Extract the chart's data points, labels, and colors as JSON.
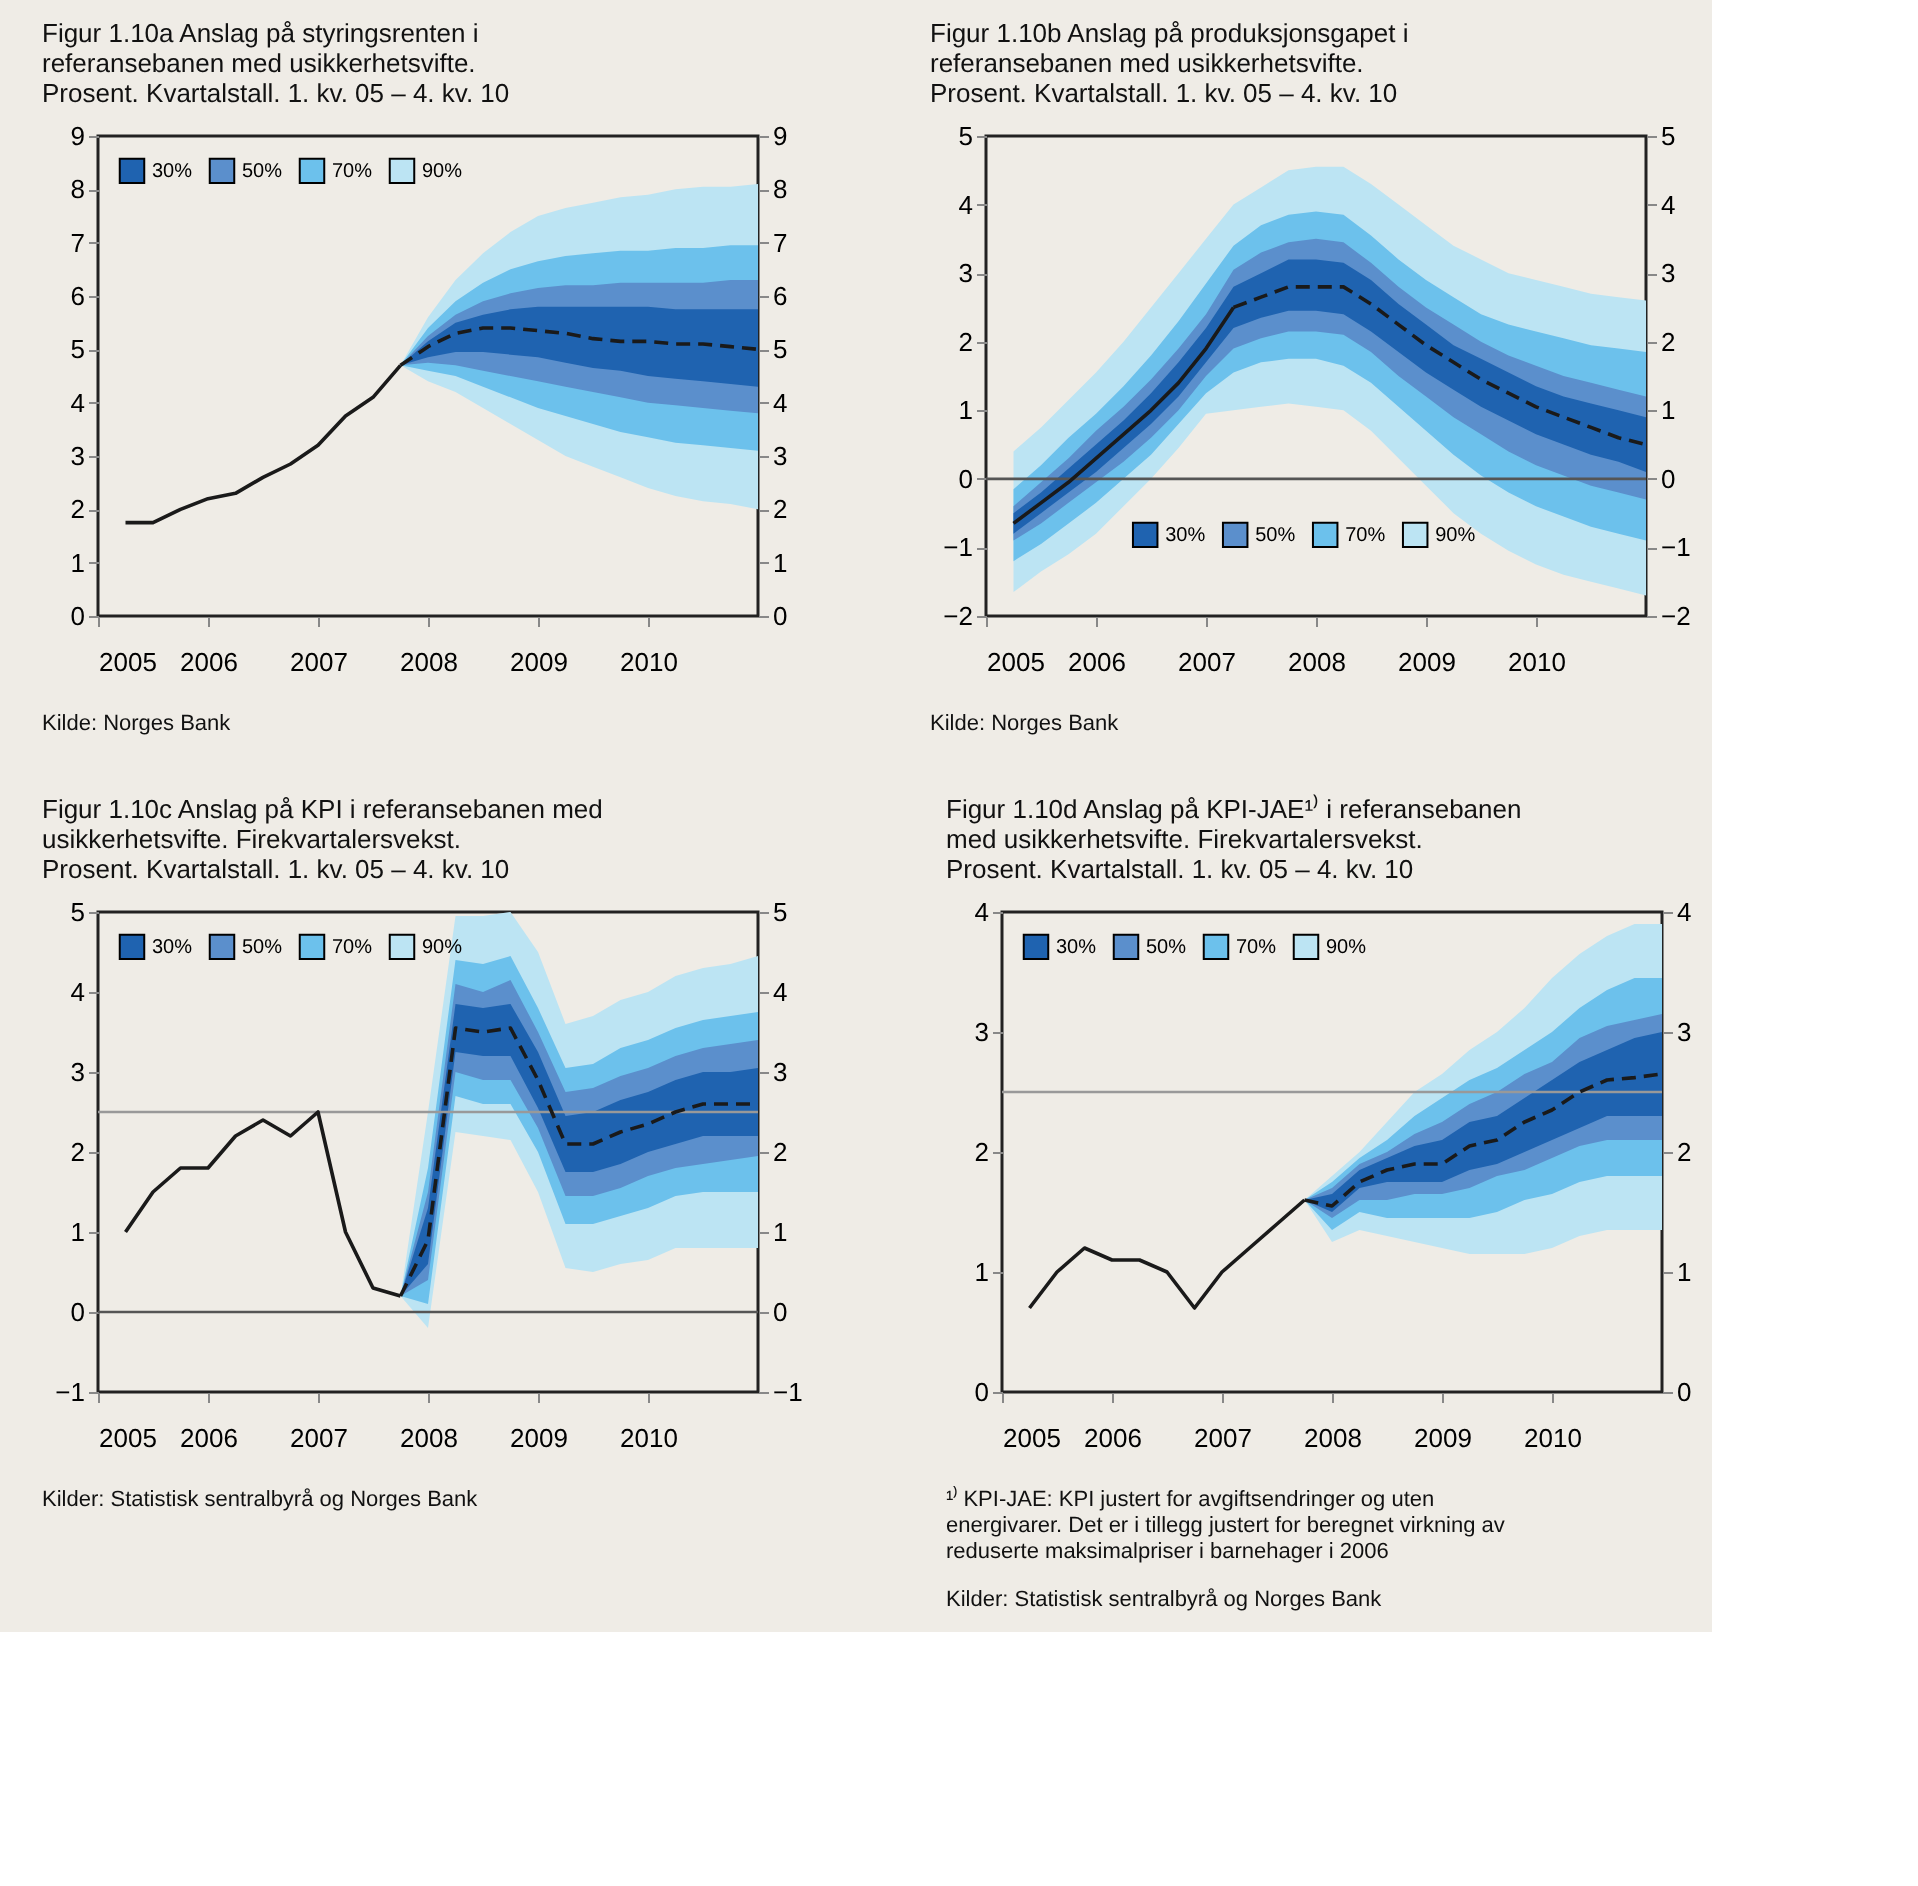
{
  "chart_data": [
    {
      "type": "line",
      "title": "Figur 1.10a Anslag på styringsrenten i referansebanen med usikkerhetsvifte.",
      "subtitle": "Prosent. Kvartalstall. 1. kv. 05 – 4. kv. 10",
      "xlim": [
        2005,
        2011
      ],
      "xticks": [
        2005,
        2006,
        2007,
        2008,
        2009,
        2010
      ],
      "ylim": [
        0,
        9
      ],
      "yticks": [
        0,
        1,
        2,
        3,
        4,
        5,
        6,
        7,
        8,
        9
      ],
      "y2lim": [
        0,
        9
      ],
      "y2ticks": [
        0,
        1,
        2,
        3,
        4,
        5,
        6,
        7,
        8,
        9
      ],
      "grid": false,
      "legend": "top left",
      "series": [
        {
          "type": "line",
          "line_style": "solid",
          "color": "#1a1a1a",
          "x": [
            2005.25,
            2005.5,
            2005.75,
            2006,
            2006.25,
            2006.5,
            2006.75,
            2007,
            2007.25,
            2007.5,
            2007.75
          ],
          "values": [
            1.75,
            1.75,
            2.0,
            2.2,
            2.3,
            2.6,
            2.85,
            3.2,
            3.75,
            4.1,
            4.7
          ]
        },
        {
          "type": "line",
          "line_style": "dashed",
          "color": "#1a1a1a",
          "axis": "y2",
          "x": [
            2007.75,
            2008,
            2008.25,
            2008.5,
            2008.75,
            2009,
            2009.25,
            2009.5,
            2009.75,
            2010,
            2010.25,
            2010.5,
            2010.75,
            2011
          ],
          "values": [
            4.7,
            5.05,
            5.3,
            5.4,
            5.4,
            5.35,
            5.3,
            5.2,
            5.15,
            5.15,
            5.1,
            5.1,
            5.05,
            5.0
          ]
        },
        {
          "name": "30%",
          "type": "area",
          "color": "#1f63b0",
          "x": [
            2007.75,
            2008,
            2008.25,
            2008.5,
            2008.75,
            2009,
            2009.25,
            2009.5,
            2009.75,
            2010,
            2010.25,
            2010.5,
            2010.75,
            2011
          ],
          "values": [
            null,
            null,
            null,
            null,
            null,
            null,
            null,
            null,
            null,
            null,
            null,
            null,
            null,
            null
          ],
          "lower": [
            4.7,
            4.85,
            4.95,
            4.95,
            4.9,
            4.85,
            4.75,
            4.65,
            4.6,
            4.5,
            4.45,
            4.4,
            4.35,
            4.3
          ],
          "upper": [
            4.7,
            5.15,
            5.5,
            5.65,
            5.75,
            5.8,
            5.8,
            5.8,
            5.8,
            5.8,
            5.75,
            5.75,
            5.75,
            5.75
          ]
        },
        {
          "name": "50%",
          "type": "area",
          "color": "#5b8fcc",
          "x": [
            2007.75,
            2008,
            2008.25,
            2008.5,
            2008.75,
            2009,
            2009.25,
            2009.5,
            2009.75,
            2010,
            2010.25,
            2010.5,
            2010.75,
            2011
          ],
          "values": [
            null,
            null,
            null,
            null,
            null,
            null,
            null,
            null,
            null,
            null,
            null,
            null,
            null,
            null
          ],
          "lower": [
            4.7,
            4.75,
            4.7,
            4.6,
            4.5,
            4.4,
            4.3,
            4.2,
            4.1,
            4.0,
            3.95,
            3.9,
            3.85,
            3.8
          ],
          "upper": [
            4.7,
            5.25,
            5.65,
            5.9,
            6.05,
            6.15,
            6.2,
            6.2,
            6.25,
            6.25,
            6.25,
            6.25,
            6.3,
            6.3
          ]
        },
        {
          "name": "70%",
          "type": "area",
          "color": "#6cc1ec",
          "x": [
            2007.75,
            2008,
            2008.25,
            2008.5,
            2008.75,
            2009,
            2009.25,
            2009.5,
            2009.75,
            2010,
            2010.25,
            2010.5,
            2010.75,
            2011
          ],
          "values": [
            null,
            null,
            null,
            null,
            null,
            null,
            null,
            null,
            null,
            null,
            null,
            null,
            null,
            null
          ],
          "lower": [
            4.7,
            4.6,
            4.5,
            4.3,
            4.1,
            3.9,
            3.75,
            3.6,
            3.45,
            3.35,
            3.25,
            3.2,
            3.15,
            3.1
          ],
          "upper": [
            4.7,
            5.4,
            5.9,
            6.25,
            6.5,
            6.65,
            6.75,
            6.8,
            6.85,
            6.85,
            6.9,
            6.9,
            6.95,
            6.95
          ]
        },
        {
          "name": "90%",
          "type": "area",
          "color": "#bce4f3",
          "x": [
            2007.75,
            2008,
            2008.25,
            2008.5,
            2008.75,
            2009,
            2009.25,
            2009.5,
            2009.75,
            2010,
            2010.25,
            2010.5,
            2010.75,
            2011
          ],
          "values": [
            null,
            null,
            null,
            null,
            null,
            null,
            null,
            null,
            null,
            null,
            null,
            null,
            null,
            null
          ],
          "lower": [
            4.7,
            4.4,
            4.2,
            3.9,
            3.6,
            3.3,
            3.0,
            2.8,
            2.6,
            2.4,
            2.25,
            2.15,
            2.1,
            2.0
          ],
          "upper": [
            4.7,
            5.6,
            6.3,
            6.8,
            7.2,
            7.5,
            7.65,
            7.75,
            7.85,
            7.9,
            8.0,
            8.05,
            8.05,
            8.1
          ]
        }
      ],
      "annotations": [
        "Kilde: Norges Bank"
      ]
    },
    {
      "type": "line",
      "title": "Figur 1.10b Anslag på produksjonsgapet i referansebanen med usikkerhetsvifte.",
      "subtitle": "Prosent. Kvartalstall. 1. kv. 05 – 4. kv. 10",
      "xlim": [
        2005,
        2011
      ],
      "xticks": [
        2005,
        2006,
        2007,
        2008,
        2009,
        2010
      ],
      "ylim": [
        -2,
        5
      ],
      "yticks": [
        -2,
        -1,
        0,
        1,
        2,
        3,
        4,
        5
      ],
      "y2lim": [
        -2,
        5
      ],
      "y2ticks": [
        -2,
        -1,
        0,
        1,
        2,
        3,
        4,
        5
      ],
      "grid": false,
      "legend": "bottom",
      "ref_lines": [
        {
          "axis": "y",
          "value": 0,
          "color": "#555555"
        }
      ],
      "series": [
        {
          "type": "line",
          "line_style": "solid",
          "color": "#1a1a1a",
          "x": [
            2005.25,
            2005.5,
            2005.75,
            2006,
            2006.25,
            2006.5,
            2006.75,
            2007,
            2007.25
          ],
          "values": [
            -0.65,
            -0.35,
            -0.05,
            0.3,
            0.65,
            1.0,
            1.4,
            1.9,
            2.5
          ]
        },
        {
          "type": "line",
          "line_style": "dashed",
          "color": "#1a1a1a",
          "axis": "y2",
          "x": [
            2007.25,
            2007.5,
            2007.75,
            2008,
            2008.25,
            2008.5,
            2008.75,
            2009,
            2009.25,
            2009.5,
            2009.75,
            2010,
            2010.25,
            2010.5,
            2010.75,
            2011
          ],
          "values": [
            2.5,
            2.65,
            2.8,
            2.8,
            2.8,
            2.55,
            2.25,
            1.95,
            1.7,
            1.45,
            1.25,
            1.05,
            0.9,
            0.75,
            0.6,
            0.5
          ]
        },
        {
          "name": "30%",
          "type": "area",
          "color": "#1f63b0",
          "x": [
            2005.25,
            2005.5,
            2005.75,
            2006,
            2006.25,
            2006.5,
            2006.75,
            2007,
            2007.25,
            2007.5,
            2007.75,
            2008,
            2008.25,
            2008.5,
            2008.75,
            2009,
            2009.25,
            2009.5,
            2009.75,
            2010,
            2010.25,
            2010.5,
            2010.75,
            2011
          ],
          "values": [
            null,
            null,
            null,
            null,
            null,
            null,
            null,
            null,
            null,
            null,
            null,
            null,
            null,
            null,
            null,
            null,
            null,
            null,
            null,
            null,
            null,
            null,
            null,
            null
          ],
          "lower": [
            -0.8,
            -0.5,
            -0.2,
            0.1,
            0.45,
            0.8,
            1.2,
            1.7,
            2.2,
            2.35,
            2.45,
            2.45,
            2.4,
            2.15,
            1.85,
            1.55,
            1.3,
            1.05,
            0.85,
            0.65,
            0.5,
            0.35,
            0.25,
            0.1
          ],
          "upper": [
            -0.5,
            -0.2,
            0.15,
            0.5,
            0.85,
            1.25,
            1.7,
            2.2,
            2.8,
            3.0,
            3.2,
            3.2,
            3.15,
            2.9,
            2.55,
            2.25,
            1.95,
            1.75,
            1.55,
            1.35,
            1.2,
            1.1,
            1.0,
            0.9
          ]
        },
        {
          "name": "50%",
          "type": "area",
          "color": "#5b8fcc",
          "x": [
            2005.25,
            2005.5,
            2005.75,
            2006,
            2006.25,
            2006.5,
            2006.75,
            2007,
            2007.25,
            2007.5,
            2007.75,
            2008,
            2008.25,
            2008.5,
            2008.75,
            2009,
            2009.25,
            2009.5,
            2009.75,
            2010,
            2010.25,
            2010.5,
            2010.75,
            2011
          ],
          "values": [
            null,
            null,
            null,
            null,
            null,
            null,
            null,
            null,
            null,
            null,
            null,
            null,
            null,
            null,
            null,
            null,
            null,
            null,
            null,
            null,
            null,
            null,
            null,
            null
          ],
          "lower": [
            -0.9,
            -0.65,
            -0.35,
            -0.05,
            0.25,
            0.6,
            1.0,
            1.5,
            1.9,
            2.05,
            2.15,
            2.15,
            2.1,
            1.85,
            1.5,
            1.2,
            0.9,
            0.65,
            0.4,
            0.2,
            0.05,
            -0.1,
            -0.2,
            -0.3
          ],
          "upper": [
            -0.4,
            -0.05,
            0.3,
            0.7,
            1.05,
            1.45,
            1.9,
            2.4,
            3.05,
            3.3,
            3.45,
            3.5,
            3.45,
            3.15,
            2.8,
            2.5,
            2.25,
            2.0,
            1.8,
            1.65,
            1.5,
            1.4,
            1.3,
            1.2
          ]
        },
        {
          "name": "70%",
          "type": "area",
          "color": "#6cc1ec",
          "x": [
            2005.25,
            2005.5,
            2005.75,
            2006,
            2006.25,
            2006.5,
            2006.75,
            2007,
            2007.25,
            2007.5,
            2007.75,
            2008,
            2008.25,
            2008.5,
            2008.75,
            2009,
            2009.25,
            2009.5,
            2009.75,
            2010,
            2010.25,
            2010.5,
            2010.75,
            2011
          ],
          "values": [
            null,
            null,
            null,
            null,
            null,
            null,
            null,
            null,
            null,
            null,
            null,
            null,
            null,
            null,
            null,
            null,
            null,
            null,
            null,
            null,
            null,
            null,
            null,
            null
          ],
          "lower": [
            -1.2,
            -0.95,
            -0.65,
            -0.35,
            0.0,
            0.35,
            0.8,
            1.25,
            1.55,
            1.7,
            1.75,
            1.75,
            1.65,
            1.4,
            1.05,
            0.7,
            0.35,
            0.05,
            -0.2,
            -0.4,
            -0.55,
            -0.7,
            -0.8,
            -0.9
          ],
          "upper": [
            -0.15,
            0.2,
            0.6,
            0.95,
            1.35,
            1.8,
            2.3,
            2.85,
            3.4,
            3.7,
            3.85,
            3.9,
            3.85,
            3.55,
            3.2,
            2.9,
            2.65,
            2.4,
            2.25,
            2.15,
            2.05,
            1.95,
            1.9,
            1.85
          ]
        },
        {
          "name": "90%",
          "type": "area",
          "color": "#bce4f3",
          "x": [
            2005.25,
            2005.5,
            2005.75,
            2006,
            2006.25,
            2006.5,
            2006.75,
            2007,
            2007.25,
            2007.5,
            2007.75,
            2008,
            2008.25,
            2008.5,
            2008.75,
            2009,
            2009.25,
            2009.5,
            2009.75,
            2010,
            2010.25,
            2010.5,
            2010.75,
            2011
          ],
          "values": [
            null,
            null,
            null,
            null,
            null,
            null,
            null,
            null,
            null,
            null,
            null,
            null,
            null,
            null,
            null,
            null,
            null,
            null,
            null,
            null,
            null,
            null,
            null,
            null
          ],
          "lower": [
            -1.65,
            -1.35,
            -1.1,
            -0.8,
            -0.4,
            0.0,
            0.45,
            0.95,
            1.0,
            1.05,
            1.1,
            1.05,
            1.0,
            0.7,
            0.3,
            -0.1,
            -0.5,
            -0.8,
            -1.05,
            -1.25,
            -1.4,
            -1.5,
            -1.6,
            -1.7
          ],
          "upper": [
            0.4,
            0.75,
            1.15,
            1.55,
            2.0,
            2.5,
            3.0,
            3.5,
            4.0,
            4.25,
            4.5,
            4.55,
            4.55,
            4.3,
            4.0,
            3.7,
            3.4,
            3.2,
            3.0,
            2.9,
            2.8,
            2.7,
            2.65,
            2.6
          ]
        }
      ],
      "annotations": [
        "Kilde: Norges Bank"
      ]
    },
    {
      "type": "line",
      "title": "Figur 1.10c Anslag på KPI i referansebanen med usikkerhetsvifte. Firekvartalersvekst.",
      "subtitle": "Prosent. Kvartalstall. 1. kv. 05 – 4. kv. 10",
      "xlim": [
        2005,
        2011
      ],
      "xticks": [
        2005,
        2006,
        2007,
        2008,
        2009,
        2010
      ],
      "ylim": [
        -1,
        5
      ],
      "yticks": [
        -1,
        0,
        1,
        2,
        3,
        4,
        5
      ],
      "y2lim": [
        -1,
        5
      ],
      "y2ticks": [
        -1,
        0,
        1,
        2,
        3,
        4,
        5
      ],
      "grid": false,
      "legend": "top left",
      "ref_lines": [
        {
          "axis": "y",
          "value": 0,
          "color": "#555555"
        },
        {
          "axis": "y",
          "value": 2.5,
          "color": "#999999"
        }
      ],
      "series": [
        {
          "type": "line",
          "line_style": "solid",
          "color": "#1a1a1a",
          "x": [
            2005.25,
            2005.5,
            2005.75,
            2006,
            2006.25,
            2006.5,
            2006.75,
            2007,
            2007.25,
            2007.5,
            2007.75
          ],
          "values": [
            1.0,
            1.5,
            1.8,
            1.8,
            2.2,
            2.4,
            2.2,
            2.5,
            1.0,
            0.3,
            0.2
          ]
        },
        {
          "type": "line",
          "line_style": "dashed",
          "color": "#1a1a1a",
          "axis": "y2",
          "x": [
            2007.75,
            2008,
            2008.25,
            2008.5,
            2008.75,
            2009,
            2009.25,
            2009.5,
            2009.75,
            2010,
            2010.25,
            2010.5,
            2010.75,
            2011
          ],
          "values": [
            0.2,
            0.9,
            3.55,
            3.5,
            3.55,
            2.9,
            2.1,
            2.1,
            2.25,
            2.35,
            2.5,
            2.6,
            2.6,
            2.6
          ]
        },
        {
          "name": "30%",
          "type": "area",
          "color": "#1f63b0",
          "x": [
            2007.75,
            2008,
            2008.25,
            2008.5,
            2008.75,
            2009,
            2009.25,
            2009.5,
            2009.75,
            2010,
            2010.25,
            2010.5,
            2010.75,
            2011
          ],
          "values": [
            null,
            null,
            null,
            null,
            null,
            null,
            null,
            null,
            null,
            null,
            null,
            null,
            null,
            null
          ],
          "lower": [
            0.2,
            0.6,
            3.25,
            3.2,
            3.2,
            2.55,
            1.75,
            1.75,
            1.85,
            2.0,
            2.1,
            2.2,
            2.2,
            2.2
          ],
          "upper": [
            0.2,
            1.3,
            3.85,
            3.8,
            3.85,
            3.25,
            2.45,
            2.5,
            2.65,
            2.75,
            2.9,
            3.0,
            3.0,
            3.05
          ]
        },
        {
          "name": "50%",
          "type": "area",
          "color": "#5b8fcc",
          "x": [
            2007.75,
            2008,
            2008.25,
            2008.5,
            2008.75,
            2009,
            2009.25,
            2009.5,
            2009.75,
            2010,
            2010.25,
            2010.5,
            2010.75,
            2011
          ],
          "values": [
            null,
            null,
            null,
            null,
            null,
            null,
            null,
            null,
            null,
            null,
            null,
            null,
            null,
            null
          ],
          "lower": [
            0.2,
            0.4,
            3.0,
            2.9,
            2.9,
            2.3,
            1.45,
            1.45,
            1.55,
            1.7,
            1.8,
            1.85,
            1.9,
            1.95
          ],
          "upper": [
            0.2,
            1.5,
            4.1,
            4.0,
            4.15,
            3.5,
            2.75,
            2.8,
            2.95,
            3.05,
            3.2,
            3.3,
            3.35,
            3.4
          ]
        },
        {
          "name": "70%",
          "type": "area",
          "color": "#6cc1ec",
          "x": [
            2007.75,
            2008,
            2008.25,
            2008.5,
            2008.75,
            2009,
            2009.25,
            2009.5,
            2009.75,
            2010,
            2010.25,
            2010.5,
            2010.75,
            2011
          ],
          "values": [
            null,
            null,
            null,
            null,
            null,
            null,
            null,
            null,
            null,
            null,
            null,
            null,
            null,
            null
          ],
          "lower": [
            0.2,
            0.1,
            2.7,
            2.6,
            2.6,
            2.0,
            1.1,
            1.1,
            1.2,
            1.3,
            1.45,
            1.5,
            1.5,
            1.5
          ],
          "upper": [
            0.2,
            1.8,
            4.4,
            4.35,
            4.45,
            3.8,
            3.05,
            3.1,
            3.3,
            3.4,
            3.55,
            3.65,
            3.7,
            3.75
          ]
        },
        {
          "name": "90%",
          "type": "area",
          "color": "#bce4f3",
          "x": [
            2007.75,
            2008,
            2008.25,
            2008.5,
            2008.75,
            2009,
            2009.25,
            2009.5,
            2009.75,
            2010,
            2010.25,
            2010.5,
            2010.75,
            2011
          ],
          "values": [
            null,
            null,
            null,
            null,
            null,
            null,
            null,
            null,
            null,
            null,
            null,
            null,
            null,
            null
          ],
          "lower": [
            0.2,
            -0.2,
            2.25,
            2.2,
            2.15,
            1.5,
            0.55,
            0.5,
            0.6,
            0.65,
            0.8,
            0.8,
            0.8,
            0.8
          ],
          "upper": [
            0.2,
            2.5,
            4.95,
            4.95,
            5.0,
            4.5,
            3.6,
            3.7,
            3.9,
            4.0,
            4.2,
            4.3,
            4.35,
            4.45
          ]
        }
      ],
      "annotations": [
        "Kilder: Statistisk sentralbyrå og Norges Bank"
      ]
    },
    {
      "type": "line",
      "title": "Figur 1.10d Anslag på KPI-JAE¹⁾ i referansebanen med usikkerhetsvifte. Firekvartalersvekst.",
      "subtitle": "Prosent. Kvartalstall. 1. kv. 05 – 4. kv. 10",
      "xlim": [
        2005,
        2011
      ],
      "xticks": [
        2005,
        2006,
        2007,
        2008,
        2009,
        2010
      ],
      "ylim": [
        0,
        4
      ],
      "yticks": [
        0,
        1,
        2,
        3,
        4
      ],
      "y2lim": [
        0,
        4
      ],
      "y2ticks": [
        0,
        1,
        2,
        3,
        4
      ],
      "grid": false,
      "legend": "top left",
      "ref_lines": [
        {
          "axis": "y",
          "value": 2.5,
          "color": "#999999"
        }
      ],
      "series": [
        {
          "type": "line",
          "line_style": "solid",
          "color": "#1a1a1a",
          "x": [
            2005.25,
            2005.5,
            2005.75,
            2006,
            2006.25,
            2006.5,
            2006.75,
            2007,
            2007.25,
            2007.5,
            2007.75
          ],
          "values": [
            0.7,
            1.0,
            1.2,
            1.1,
            1.1,
            1.0,
            0.7,
            1.0,
            1.2,
            1.4,
            1.6
          ]
        },
        {
          "type": "line",
          "line_style": "dashed",
          "color": "#1a1a1a",
          "axis": "y2",
          "x": [
            2007.75,
            2008,
            2008.25,
            2008.5,
            2008.75,
            2009,
            2009.25,
            2009.5,
            2009.75,
            2010,
            2010.25,
            2010.5,
            2010.75,
            2011
          ],
          "values": [
            1.6,
            1.55,
            1.75,
            1.85,
            1.9,
            1.9,
            2.05,
            2.1,
            2.25,
            2.35,
            2.5,
            2.6,
            2.62,
            2.65
          ]
        },
        {
          "name": "30%",
          "type": "area",
          "color": "#1f63b0",
          "x": [
            2007.75,
            2008,
            2008.25,
            2008.5,
            2008.75,
            2009,
            2009.25,
            2009.5,
            2009.75,
            2010,
            2010.25,
            2010.5,
            2010.75,
            2011
          ],
          "values": [
            null,
            null,
            null,
            null,
            null,
            null,
            null,
            null,
            null,
            null,
            null,
            null,
            null,
            null
          ],
          "lower": [
            1.6,
            1.5,
            1.7,
            1.75,
            1.75,
            1.75,
            1.85,
            1.9,
            2.0,
            2.1,
            2.2,
            2.3,
            2.3,
            2.3
          ],
          "upper": [
            1.6,
            1.65,
            1.85,
            1.95,
            2.05,
            2.1,
            2.25,
            2.3,
            2.45,
            2.6,
            2.75,
            2.85,
            2.95,
            3.0
          ]
        },
        {
          "name": "50%",
          "type": "area",
          "color": "#5b8fcc",
          "x": [
            2007.75,
            2008,
            2008.25,
            2008.5,
            2008.75,
            2009,
            2009.25,
            2009.5,
            2009.75,
            2010,
            2010.25,
            2010.5,
            2010.75,
            2011
          ],
          "values": [
            null,
            null,
            null,
            null,
            null,
            null,
            null,
            null,
            null,
            null,
            null,
            null,
            null,
            null
          ],
          "lower": [
            1.6,
            1.45,
            1.6,
            1.6,
            1.65,
            1.65,
            1.7,
            1.8,
            1.85,
            1.95,
            2.05,
            2.1,
            2.1,
            2.1
          ],
          "upper": [
            1.6,
            1.7,
            1.9,
            2.0,
            2.15,
            2.25,
            2.4,
            2.5,
            2.65,
            2.75,
            2.95,
            3.05,
            3.1,
            3.15
          ]
        },
        {
          "name": "70%",
          "type": "area",
          "color": "#6cc1ec",
          "x": [
            2007.75,
            2008,
            2008.25,
            2008.5,
            2008.75,
            2009,
            2009.25,
            2009.5,
            2009.75,
            2010,
            2010.25,
            2010.5,
            2010.75,
            2011
          ],
          "values": [
            null,
            null,
            null,
            null,
            null,
            null,
            null,
            null,
            null,
            null,
            null,
            null,
            null,
            null
          ],
          "lower": [
            1.6,
            1.35,
            1.5,
            1.45,
            1.45,
            1.45,
            1.45,
            1.5,
            1.6,
            1.65,
            1.75,
            1.8,
            1.8,
            1.8
          ],
          "upper": [
            1.6,
            1.75,
            1.95,
            2.1,
            2.3,
            2.45,
            2.6,
            2.7,
            2.85,
            3.0,
            3.2,
            3.35,
            3.45,
            3.45
          ]
        },
        {
          "name": "90%",
          "type": "area",
          "color": "#bce4f3",
          "x": [
            2007.75,
            2008,
            2008.25,
            2008.5,
            2008.75,
            2009,
            2009.25,
            2009.5,
            2009.75,
            2010,
            2010.25,
            2010.5,
            2010.75,
            2011
          ],
          "values": [
            null,
            null,
            null,
            null,
            null,
            null,
            null,
            null,
            null,
            null,
            null,
            null,
            null,
            null
          ],
          "lower": [
            1.6,
            1.25,
            1.35,
            1.3,
            1.25,
            1.2,
            1.15,
            1.15,
            1.15,
            1.2,
            1.3,
            1.35,
            1.35,
            1.35
          ],
          "upper": [
            1.6,
            1.8,
            2.0,
            2.25,
            2.5,
            2.65,
            2.85,
            3.0,
            3.2,
            3.45,
            3.65,
            3.8,
            3.9,
            3.9
          ]
        }
      ],
      "annotations": [
        "¹⁾ KPI-JAE: KPI justert for avgiftsendringer og uten energivarer. Det er i tillegg justert for beregnet virkning av reduserte maksimalpriser i barnehager i 2006",
        "Kilder: Statistisk sentralbyrå og Norges Bank"
      ]
    }
  ]
}
